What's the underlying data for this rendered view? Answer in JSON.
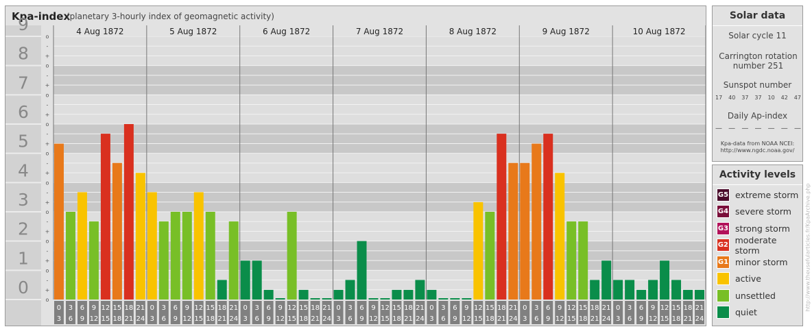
{
  "header": {
    "title": "Kpa-index",
    "subtitle": "(planetary 3-hourly index of geomagnetic activity)"
  },
  "chart_data": {
    "type": "bar",
    "title": "Kpa-index",
    "subtitle": "(planetary 3-hourly index of geomagnetic activity)",
    "ylim": [
      0,
      9
    ],
    "y_ticks": [
      "0",
      "1",
      "2",
      "3",
      "4",
      "5",
      "6",
      "7",
      "8",
      "9"
    ],
    "y_minor_ticks": [
      "o",
      "+",
      "-"
    ],
    "days": [
      "4 Aug 1872",
      "5 Aug 1872",
      "6 Aug 1872",
      "7 Aug 1872",
      "8 Aug 1872",
      "9 Aug 1872",
      "10 Aug 1872"
    ],
    "interval_starts": [
      "0",
      "3",
      "6",
      "9",
      "12",
      "15",
      "18",
      "21"
    ],
    "interval_ends": [
      "3",
      "6",
      "9",
      "12",
      "15",
      "18",
      "21",
      "24"
    ],
    "values": [
      5.33,
      3.0,
      3.67,
      2.67,
      5.67,
      4.67,
      6.0,
      4.33,
      3.67,
      2.67,
      3.0,
      3.0,
      3.67,
      3.0,
      0.67,
      2.67,
      1.33,
      1.33,
      0.33,
      0.0,
      3.0,
      0.33,
      0.0,
      0.0,
      0.33,
      0.67,
      2.0,
      0.0,
      0.0,
      0.33,
      0.33,
      0.67,
      0.33,
      0.0,
      0.0,
      0.0,
      3.33,
      3.0,
      5.67,
      4.67,
      4.67,
      5.33,
      5.67,
      4.33,
      2.67,
      2.67,
      0.67,
      1.33,
      0.67,
      0.67,
      0.33,
      0.67,
      1.33,
      0.67,
      0.33,
      0.33
    ],
    "colors": {
      "quiet": "#0a8d4a",
      "unsettled": "#78bf27",
      "active": "#f9c300",
      "minor_storm": "#e8791a",
      "moderate_storm": "#d9301f",
      "strong_storm": "#b2125a",
      "severe_storm": "#7a0f3a",
      "extreme_storm": "#4a0a2a"
    },
    "grid": true,
    "legend_placement": "right"
  },
  "solar": {
    "title": "Solar data",
    "cycle": "Solar cycle 11",
    "carrington": "Carrington rotation number 251",
    "sunspot_title": "Sunspot number",
    "sunspots": [
      "17",
      "40",
      "37",
      "37",
      "10",
      "42",
      "47"
    ],
    "ap_title": "Daily Ap-index",
    "ap_values": [
      "—",
      "—",
      "—",
      "—",
      "—",
      "—",
      "—"
    ],
    "source_line1": "Kpa-data from NOAA NCEI:",
    "source_line2": "http://www.ngdc.noaa.gov/"
  },
  "activity": {
    "title": "Activity levels",
    "items": [
      {
        "badge": "G5",
        "label": "extreme storm",
        "color": "#4a0a2a"
      },
      {
        "badge": "G4",
        "label": "severe storm",
        "color": "#7a0f3a"
      },
      {
        "badge": "G3",
        "label": "strong storm",
        "color": "#b2125a"
      },
      {
        "badge": "G2",
        "label": "moderate storm",
        "color": "#d9301f"
      },
      {
        "badge": "G1",
        "label": "minor storm",
        "color": "#e8791a"
      },
      {
        "badge": "",
        "label": "active",
        "color": "#f9c300"
      },
      {
        "badge": "",
        "label": "unsettled",
        "color": "#78bf27"
      },
      {
        "badge": "",
        "label": "quiet",
        "color": "#0a8d4a"
      }
    ]
  },
  "watermark": "http://www.theusefularticles.fr/KpaArchive.php"
}
